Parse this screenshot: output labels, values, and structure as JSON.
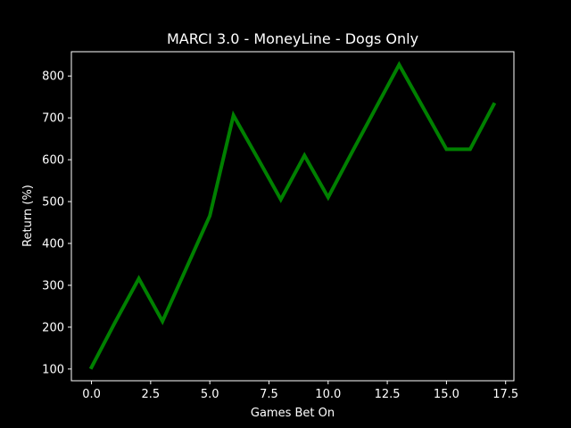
{
  "chart_data": {
    "type": "line",
    "title": "MARCI 3.0 - MoneyLine - Dogs Only",
    "xlabel": "Games Bet On",
    "ylabel": "Return (%)",
    "xlim": [
      -0.85,
      17.85
    ],
    "ylim": [
      72,
      858
    ],
    "xticks": [
      0,
      2.5,
      5,
      7.5,
      10,
      12.5,
      15,
      17.5
    ],
    "xtick_labels": [
      "0.0",
      "2.5",
      "5.0",
      "7.5",
      "10.0",
      "12.5",
      "15.0",
      "17.5"
    ],
    "yticks": [
      100,
      200,
      300,
      400,
      500,
      600,
      700,
      800
    ],
    "ytick_labels": [
      "100",
      "200",
      "300",
      "400",
      "500",
      "600",
      "700",
      "800"
    ],
    "grid": false,
    "series": [
      {
        "color": "#008000",
        "x": [
          0,
          1,
          2,
          3,
          4,
          5,
          6,
          7,
          8,
          9,
          10,
          11,
          12,
          13,
          14,
          15,
          16,
          17
        ],
        "y": [
          104,
          212,
          316,
          214,
          340,
          466,
          706,
          606,
          505,
          610,
          510,
          617,
          722,
          827,
          726,
          625,
          625,
          732
        ]
      }
    ]
  }
}
